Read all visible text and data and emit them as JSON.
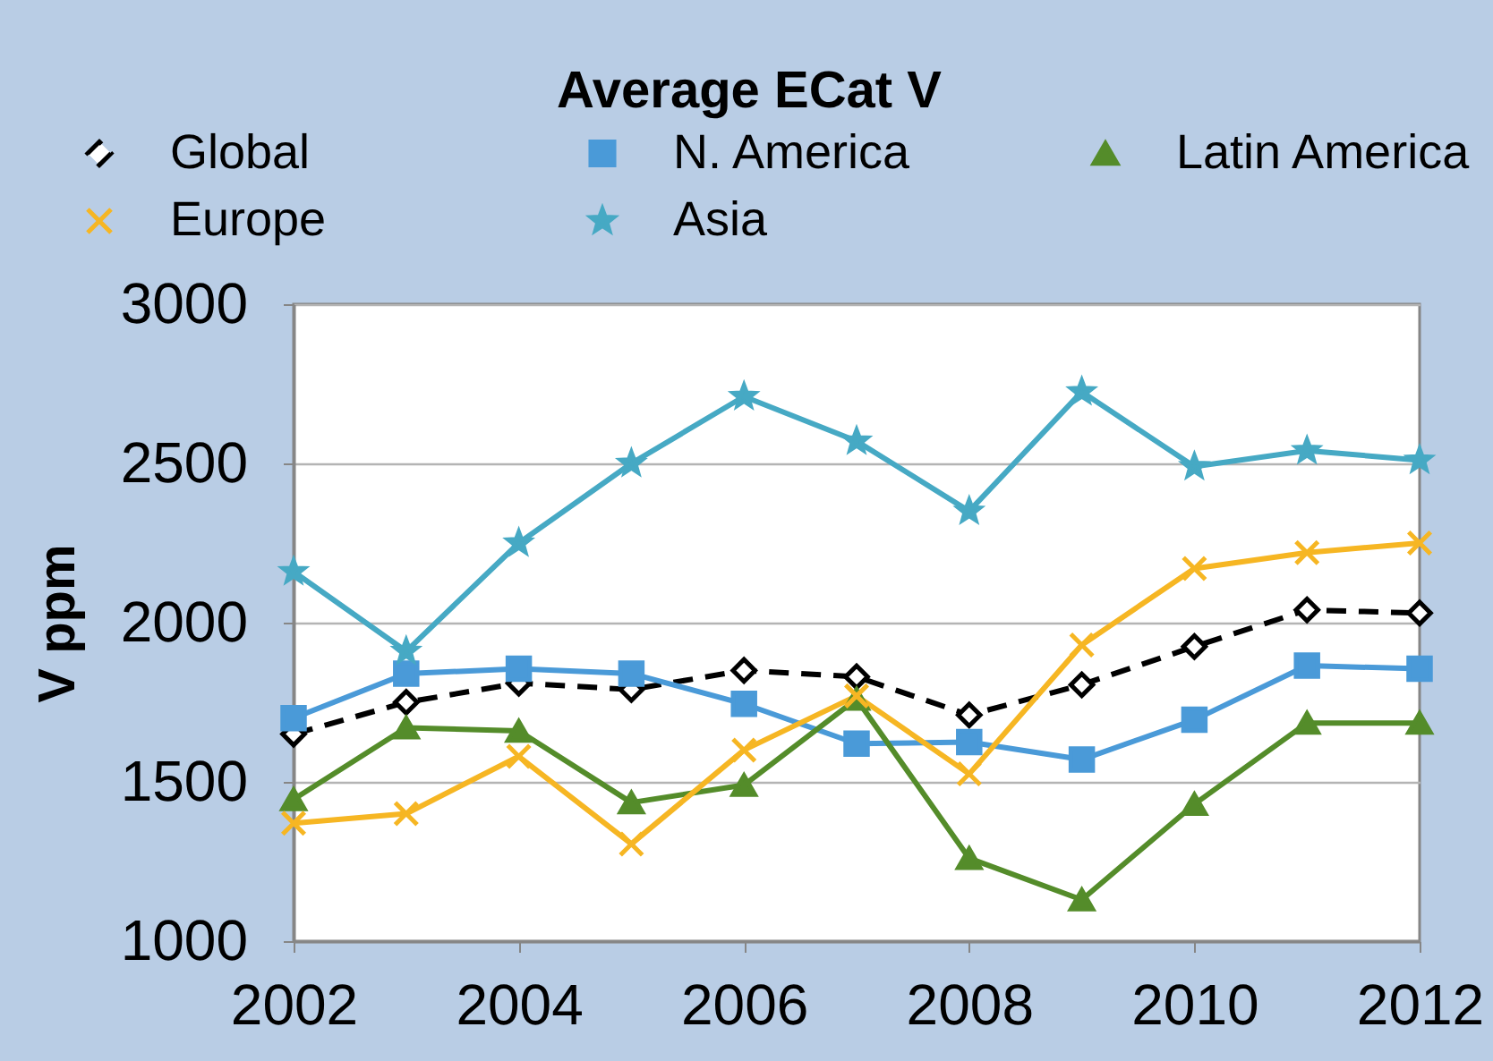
{
  "chart_data": {
    "type": "line",
    "title": "Average ECat V",
    "ylabel": "V ppm",
    "x": [
      2002,
      2003,
      2004,
      2005,
      2006,
      2007,
      2008,
      2009,
      2010,
      2011,
      2012
    ],
    "xlim": [
      2002,
      2012
    ],
    "xticks": [
      2002,
      2004,
      2006,
      2008,
      2010,
      2012
    ],
    "ylim": [
      1000,
      3000
    ],
    "yticks": [
      1000,
      1500,
      2000,
      2500,
      3000
    ],
    "grid": "y",
    "legend": "top",
    "series": [
      {
        "name": "Global",
        "color": "#000000",
        "marker": "diamond",
        "line_style": "dashed",
        "values": [
          1650,
          1750,
          1810,
          1790,
          1850,
          1830,
          1710,
          1805,
          1925,
          2040,
          2030
        ]
      },
      {
        "name": "N. America",
        "color": "#4a9ad8",
        "marker": "square",
        "line_style": "solid",
        "values": [
          1700,
          1840,
          1855,
          1840,
          1745,
          1620,
          1625,
          1570,
          1695,
          1865,
          1855
        ]
      },
      {
        "name": "Latin America",
        "color": "#548c2a",
        "marker": "triangle",
        "line_style": "solid",
        "values": [
          1445,
          1670,
          1660,
          1435,
          1490,
          1760,
          1260,
          1130,
          1430,
          1685,
          1685
        ]
      },
      {
        "name": "Europe",
        "color": "#f6b623",
        "marker": "cross",
        "line_style": "solid",
        "values": [
          1370,
          1400,
          1580,
          1305,
          1600,
          1770,
          1525,
          1930,
          2170,
          2220,
          2250
        ]
      },
      {
        "name": "Asia",
        "color": "#46a9c4",
        "marker": "star",
        "line_style": "solid",
        "values": [
          2160,
          1910,
          2250,
          2500,
          2710,
          2570,
          2350,
          2725,
          2490,
          2540,
          2510
        ]
      }
    ]
  }
}
